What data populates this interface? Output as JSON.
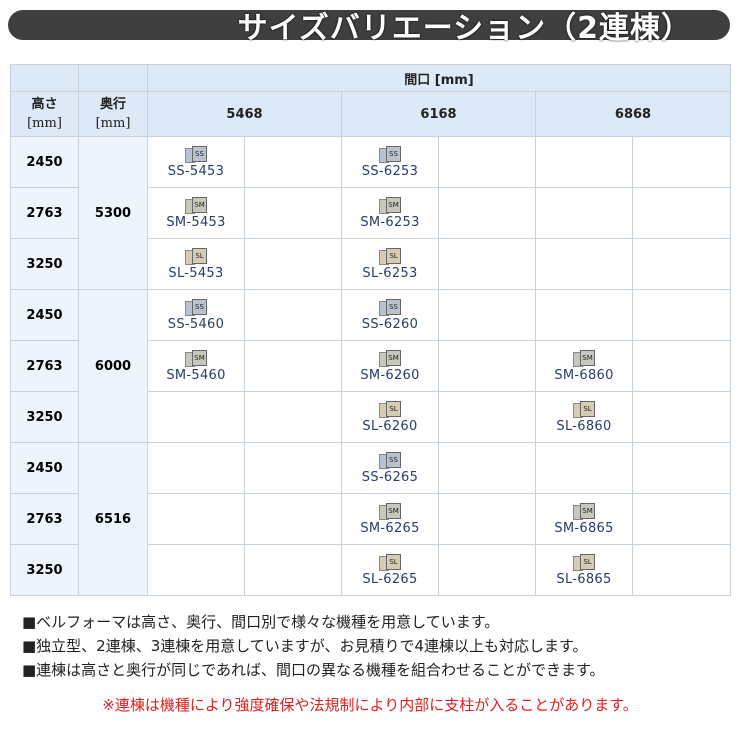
{
  "title": "サイズバリエーション（2連棟）",
  "table": {
    "frontage_header": "間口 [mm]",
    "height_header": [
      "高さ",
      "[mm]"
    ],
    "depth_header": [
      "奥行",
      "[mm]"
    ],
    "widths": [
      "5468",
      "6168",
      "6868"
    ],
    "groups": [
      {
        "depth": "5300",
        "rows": [
          {
            "height": "2450",
            "models": [
              "SS-5453",
              "SS-6253",
              null
            ]
          },
          {
            "height": "2763",
            "models": [
              "SM-5453",
              "SM-6253",
              null
            ]
          },
          {
            "height": "3250",
            "models": [
              "SL-5453",
              "SL-6253",
              null
            ]
          }
        ]
      },
      {
        "depth": "6000",
        "rows": [
          {
            "height": "2450",
            "models": [
              "SS-5460",
              "SS-6260",
              null
            ]
          },
          {
            "height": "2763",
            "models": [
              "SM-5460",
              "SM-6260",
              "SM-6860"
            ]
          },
          {
            "height": "3250",
            "models": [
              null,
              "SL-6260",
              "SL-6860"
            ]
          }
        ]
      },
      {
        "depth": "6516",
        "rows": [
          {
            "height": "2450",
            "models": [
              null,
              "SS-6265",
              null
            ]
          },
          {
            "height": "2763",
            "models": [
              null,
              "SM-6265",
              "SM-6865"
            ]
          },
          {
            "height": "3250",
            "models": [
              null,
              "SL-6265",
              "SL-6865"
            ]
          }
        ]
      }
    ],
    "icon_colors": {
      "SS": "#b9c3cf",
      "SM": "#c5c9bc",
      "SL": "#d8cbb3"
    }
  },
  "notes": [
    "■ベルフォーマは高さ、奥行、間口別で様々な機種を用意しています。",
    "■独立型、2連棟、3連棟を用意していますが、お見積りで4連棟以上も対応します。",
    "■連棟は高さと奥行が同じであれば、間口の異なる機種を組合わせることができます。"
  ],
  "warning": "※連棟は機種により強度確保や法規制により内部に支柱が入ることがあります。",
  "warning_color": "#e0201f"
}
